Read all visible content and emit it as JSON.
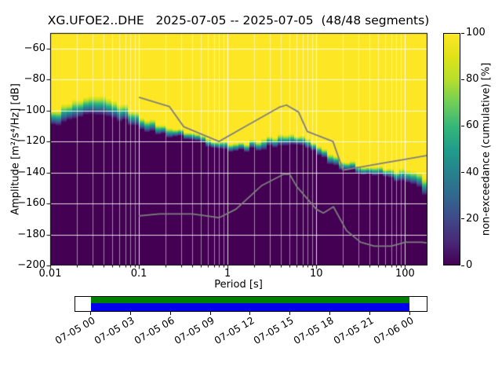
{
  "title": "XG.UFOE2..DHE   2025-07-05 -- 2025-07-05  (48/48 segments)",
  "chart_data": {
    "type": "heatmap",
    "subtype": "ppsd-cumulative-histogram",
    "station": "XG.UFOE2..DHE",
    "date_start": "2025-07-05",
    "date_end": "2025-07-05",
    "segments_used": 48,
    "segments_total": 48,
    "xlabel": "Period [s]",
    "ylabel": "Amplitude [m²/s⁴/Hz] [dB]",
    "xscale": "log",
    "xlim": [
      0.01,
      179
    ],
    "ylim": [
      -200,
      -50
    ],
    "xticks": [
      0.01,
      0.1,
      1,
      10,
      100
    ],
    "xtick_labels": [
      "0.01",
      "0.1",
      "1",
      "10",
      "100"
    ],
    "yticks": [
      -60,
      -80,
      -100,
      -120,
      -140,
      -160,
      -180,
      -200
    ],
    "ytick_labels": [
      "−60",
      "−80",
      "−100",
      "−120",
      "−140",
      "−160",
      "−180",
      "−200"
    ],
    "grid": true,
    "grid_color": "#ffffff",
    "colorbar": {
      "label": "non-exceedance (cumulative) [%]",
      "ticks": [
        0,
        20,
        40,
        60,
        80,
        100
      ],
      "tick_labels": [
        "0",
        "20",
        "40",
        "60",
        "80",
        "100"
      ],
      "colormap": "viridis",
      "stops": [
        [
          0.0,
          "#440154"
        ],
        [
          0.1,
          "#482878"
        ],
        [
          0.2,
          "#3e4989"
        ],
        [
          0.3,
          "#31688e"
        ],
        [
          0.4,
          "#26828e"
        ],
        [
          0.5,
          "#1f9e89"
        ],
        [
          0.6,
          "#35b779"
        ],
        [
          0.7,
          "#6ece58"
        ],
        [
          0.8,
          "#b5de2b"
        ],
        [
          0.9,
          "#dfe318"
        ],
        [
          1.0,
          "#fde725"
        ]
      ]
    },
    "cdf_edge": {
      "comment": "50% non-exceedance level (yellow/dark transition) vs period",
      "periods": [
        0.01,
        0.015,
        0.02,
        0.03,
        0.04,
        0.05,
        0.07,
        0.1,
        0.15,
        0.2,
        0.3,
        0.5,
        0.7,
        1.0,
        1.5,
        2.0,
        3.0,
        4.0,
        5.0,
        7.0,
        10,
        14,
        20,
        30,
        50,
        70,
        100,
        120,
        140,
        160,
        179
      ],
      "db": [
        -106,
        -102,
        -99.5,
        -97.5,
        -98,
        -99.5,
        -102,
        -107,
        -111,
        -113,
        -115,
        -118,
        -121,
        -123,
        -123.5,
        -122.5,
        -120.5,
        -119,
        -118.5,
        -120,
        -124,
        -130,
        -135,
        -137.5,
        -139.5,
        -141,
        -142.5,
        -143.5,
        -145,
        -149,
        -151
      ],
      "width_db": [
        10,
        11,
        12,
        12,
        12,
        12,
        10,
        8,
        7,
        6,
        5,
        5,
        5,
        5,
        5,
        6,
        7,
        7,
        7,
        6,
        6,
        6,
        6,
        5,
        5,
        6,
        8,
        9,
        10,
        12,
        12
      ]
    },
    "noise_models": {
      "color": "#7f7f7f",
      "high_periods": [
        0.1,
        0.22,
        0.32,
        0.8,
        1.5,
        2.4,
        3.8,
        4.6,
        6.3,
        7.9,
        15.4,
        20,
        60,
        100,
        179
      ],
      "high_db": [
        -91.5,
        -97.4,
        -110.5,
        -120.0,
        -111.1,
        -104.5,
        -98.0,
        -96.5,
        -101.0,
        -113.5,
        -120.0,
        -138.5,
        -133.7,
        -131.5,
        -129.0
      ],
      "low_periods": [
        0.1,
        0.17,
        0.4,
        0.8,
        1.24,
        2.4,
        4.3,
        5.0,
        6.0,
        10,
        12,
        15.6,
        21.9,
        31.6,
        45,
        70,
        101,
        154,
        179
      ],
      "low_db": [
        -168.0,
        -166.7,
        -166.7,
        -169.2,
        -163.7,
        -148.6,
        -141.1,
        -141.1,
        -149.0,
        -163.7,
        -166.2,
        -162.1,
        -177.5,
        -185.0,
        -187.5,
        -187.5,
        -185.0,
        -185.0,
        -185.5
      ]
    },
    "timeline": {
      "labels": [
        "07-05 00",
        "07-05 03",
        "07-05 06",
        "07-05 09",
        "07-05 12",
        "07-05 15",
        "07-05 18",
        "07-05 21",
        "07-06 00"
      ],
      "coverage_color": "#008000",
      "extent_color": "#0000ee",
      "coverage_start_frac": 0.044,
      "coverage_end_frac": 0.951
    }
  }
}
